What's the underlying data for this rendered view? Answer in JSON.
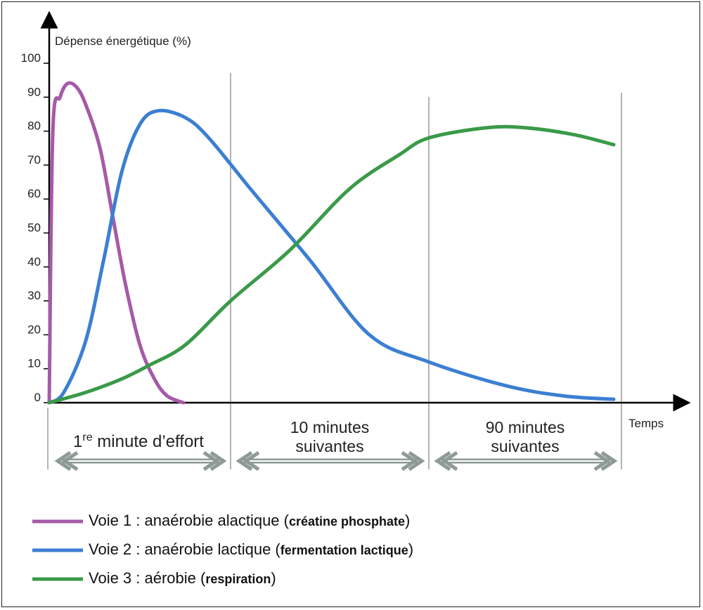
{
  "chart_data": {
    "type": "line",
    "ylabel": "Dépense énergétique (%)",
    "xlabel": "Temps",
    "ylim": [
      0,
      100
    ],
    "yticks": [
      "0",
      "10",
      "20",
      "30",
      "40",
      "50",
      "60",
      "70",
      "80",
      "90",
      "100"
    ],
    "phases": [
      {
        "label_line1": "1",
        "label_sup": "re",
        "label_rest": " minute d’effort",
        "x_range": [
          0,
          1
        ]
      },
      {
        "label_line1": "10 minutes",
        "label_line2": "suivantes",
        "x_range": [
          1,
          2
        ]
      },
      {
        "label_line1": "90 minutes",
        "label_line2": "suivantes",
        "x_range": [
          2,
          3
        ]
      }
    ],
    "series": [
      {
        "color": "#a55aa8",
        "points": [
          [
            0,
            0
          ],
          [
            0.02,
            80
          ],
          [
            0.06,
            90
          ],
          [
            0.1,
            94
          ],
          [
            0.15,
            93
          ],
          [
            0.2,
            88
          ],
          [
            0.28,
            75
          ],
          [
            0.35,
            55
          ],
          [
            0.42,
            35
          ],
          [
            0.5,
            17
          ],
          [
            0.58,
            7
          ],
          [
            0.65,
            2
          ],
          [
            0.74,
            0
          ]
        ]
      },
      {
        "color": "#3c7fd2",
        "points": [
          [
            0,
            0
          ],
          [
            0.08,
            3
          ],
          [
            0.2,
            18
          ],
          [
            0.3,
            42
          ],
          [
            0.4,
            68
          ],
          [
            0.5,
            82
          ],
          [
            0.6,
            86
          ],
          [
            0.75,
            84
          ],
          [
            0.88,
            78
          ],
          [
            1.1,
            63
          ],
          [
            1.4,
            42
          ],
          [
            1.7,
            20
          ],
          [
            2.0,
            12
          ],
          [
            2.4,
            5
          ],
          [
            2.7,
            2
          ],
          [
            2.96,
            1
          ]
        ]
      },
      {
        "color": "#3a9a48",
        "points": [
          [
            0,
            0
          ],
          [
            0.2,
            3
          ],
          [
            0.4,
            7
          ],
          [
            0.55,
            11
          ],
          [
            0.75,
            17
          ],
          [
            1.0,
            30
          ],
          [
            1.3,
            45
          ],
          [
            1.6,
            63
          ],
          [
            1.85,
            73
          ],
          [
            2.0,
            78
          ],
          [
            2.3,
            81
          ],
          [
            2.5,
            81
          ],
          [
            2.75,
            79
          ],
          [
            2.96,
            76
          ]
        ]
      }
    ],
    "legend": [
      {
        "text": "Voie 1 : anaérobie alactique (",
        "bold": "créatine phosphate",
        "close": ")"
      },
      {
        "text": "Voie 2 : anaérobie lactique (",
        "bold": "fermentation lactique",
        "close": ")"
      },
      {
        "text": "Voie 3 : aérobie (",
        "bold": "respiration",
        "close": ")"
      }
    ]
  }
}
